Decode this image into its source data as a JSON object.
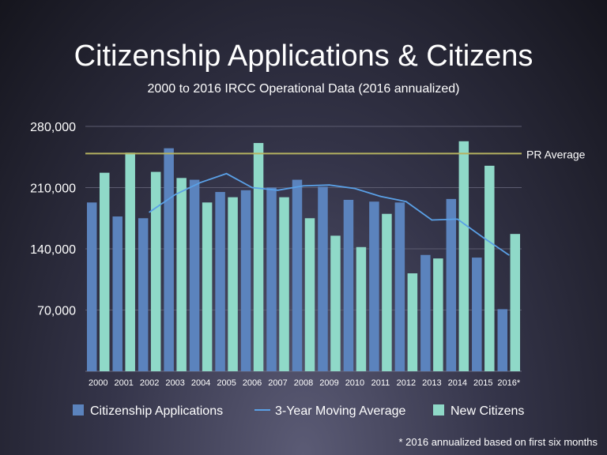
{
  "title": "Citizenship Applications & Citizens",
  "subtitle": "2000 to 2016 IRCC Operational Data (2016 annualized)",
  "footnote": "* 2016 annualized based on first six months",
  "chart_data": {
    "type": "bar",
    "categories": [
      "2000",
      "2001",
      "2002",
      "2003",
      "2004",
      "2005",
      "2006",
      "2007",
      "2008",
      "2009",
      "2010",
      "2011",
      "2012",
      "2013",
      "2014",
      "2015",
      "2016*"
    ],
    "ylim": [
      0,
      280000
    ],
    "yticks": [
      70000,
      140000,
      210000,
      280000
    ],
    "ytick_labels": [
      "70,000",
      "140,000",
      "210,000",
      "280,000"
    ],
    "grid": true,
    "legend_position": "bottom",
    "series": [
      {
        "name": "Citizenship Applications",
        "kind": "bar",
        "color": "#5b83bd",
        "values": [
          193000,
          177000,
          175000,
          255000,
          219000,
          205000,
          207000,
          210000,
          219000,
          211000,
          196000,
          194000,
          193000,
          133000,
          197000,
          130000,
          71000
        ]
      },
      {
        "name": "New Citizens",
        "kind": "bar",
        "color": "#8fd9c8",
        "values": [
          227000,
          250000,
          228000,
          221000,
          193000,
          199000,
          261000,
          199000,
          175000,
          155000,
          142000,
          180000,
          112000,
          129000,
          263000,
          235000,
          157000
        ]
      },
      {
        "name": "3-Year Moving Average",
        "kind": "line",
        "color": "#5aa0e6",
        "values": [
          null,
          null,
          182000,
          202000,
          216000,
          226000,
          210000,
          207000,
          212000,
          213000,
          209000,
          200000,
          194000,
          173000,
          174000,
          153000,
          133000
        ]
      }
    ],
    "reference_line": {
      "label": "PR Average",
      "value": 249000,
      "color": "#b5b260"
    }
  }
}
